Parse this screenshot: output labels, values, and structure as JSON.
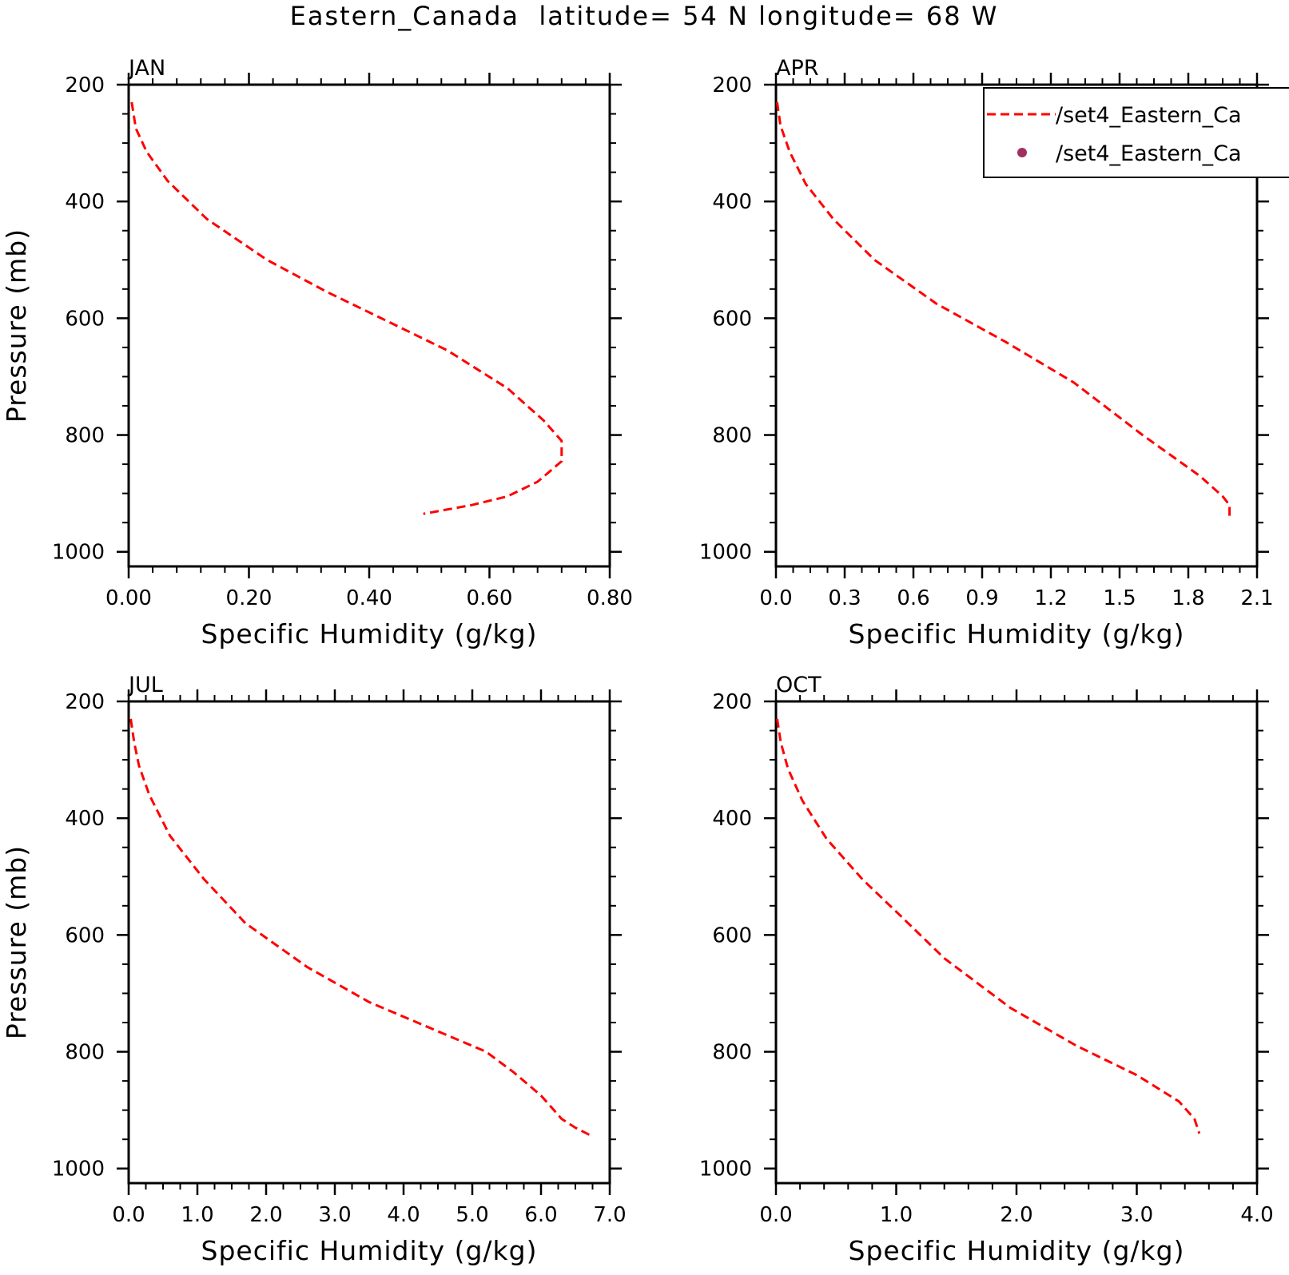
{
  "figure": {
    "title": "Eastern_Canada  latitude= 54 N longitude= 68 W"
  },
  "legend": {
    "items": [
      {
        "label": "/set4_Eastern_Ca",
        "style": "dashed-line",
        "color": "#ff0000"
      },
      {
        "label": "/set4_Eastern_Ca",
        "style": "dot",
        "color": "#a03060"
      }
    ]
  },
  "colors": {
    "series": "#ff0000",
    "axis": "#000000",
    "legend_dot": "#a03060"
  },
  "chart_data": [
    {
      "type": "line",
      "panel_title": "JAN",
      "xlabel": "Specific Humidity (g/kg)",
      "ylabel": "Pressure (mb)",
      "xlim": [
        0,
        0.8
      ],
      "ylim": [
        200,
        1025
      ],
      "y_inverted": true,
      "xticks": [
        0,
        0.2,
        0.4,
        0.6,
        0.8
      ],
      "xtick_labels": [
        "0.00",
        "0.20",
        "0.40",
        "0.60",
        "0.80"
      ],
      "yticks": [
        200,
        400,
        600,
        800,
        1000
      ],
      "ytick_labels": [
        "200",
        "400",
        "600",
        "800",
        "1000"
      ],
      "series": [
        {
          "line_style": "dashed",
          "color": "#ff0000",
          "x": [
            0.005,
            0.012,
            0.03,
            0.065,
            0.13,
            0.23,
            0.33,
            0.43,
            0.53,
            0.63,
            0.69,
            0.72,
            0.72,
            0.68,
            0.63,
            0.57,
            0.49
          ],
          "y": [
            230,
            275,
            315,
            365,
            430,
            500,
            555,
            605,
            655,
            720,
            775,
            810,
            845,
            880,
            905,
            920,
            935
          ]
        }
      ]
    },
    {
      "type": "line",
      "panel_title": "APR",
      "xlabel": "Specific Humidity (g/kg)",
      "ylabel": "",
      "xlim": [
        0,
        2.1
      ],
      "ylim": [
        200,
        1025
      ],
      "y_inverted": true,
      "xticks": [
        0,
        0.3,
        0.6,
        0.9,
        1.2,
        1.5,
        1.8,
        2.1
      ],
      "xtick_labels": [
        "0.0",
        "0.3",
        "0.6",
        "0.9",
        "1.2",
        "1.5",
        "1.8",
        "2.1"
      ],
      "yticks": [
        200,
        400,
        600,
        800,
        1000
      ],
      "ytick_labels": [
        "200",
        "400",
        "600",
        "800",
        "1000"
      ],
      "series": [
        {
          "line_style": "dashed",
          "color": "#ff0000",
          "x": [
            0.005,
            0.02,
            0.06,
            0.13,
            0.25,
            0.43,
            0.7,
            1.0,
            1.3,
            1.6,
            1.85,
            1.95,
            1.98,
            1.98
          ],
          "y": [
            230,
            270,
            315,
            370,
            430,
            500,
            575,
            640,
            710,
            800,
            870,
            905,
            920,
            940
          ]
        }
      ]
    },
    {
      "type": "line",
      "panel_title": "JUL",
      "xlabel": "Specific Humidity (g/kg)",
      "ylabel": "Pressure (mb)",
      "xlim": [
        0,
        7
      ],
      "ylim": [
        200,
        1025
      ],
      "y_inverted": true,
      "xticks": [
        0,
        1,
        2,
        3,
        4,
        5,
        6,
        7
      ],
      "xtick_labels": [
        "0.0",
        "1.0",
        "2.0",
        "3.0",
        "4.0",
        "5.0",
        "6.0",
        "7.0"
      ],
      "yticks": [
        200,
        400,
        600,
        800,
        1000
      ],
      "ytick_labels": [
        "200",
        "400",
        "600",
        "800",
        "1000"
      ],
      "series": [
        {
          "line_style": "dashed",
          "color": "#ff0000",
          "x": [
            0.03,
            0.08,
            0.15,
            0.3,
            0.6,
            1.1,
            1.7,
            2.6,
            3.5,
            4.4,
            5.2,
            5.6,
            6.0,
            6.3,
            6.5,
            6.75
          ],
          "y": [
            230,
            270,
            310,
            360,
            430,
            505,
            580,
            655,
            715,
            760,
            800,
            835,
            875,
            915,
            930,
            945
          ]
        }
      ]
    },
    {
      "type": "line",
      "panel_title": "OCT",
      "xlabel": "Specific Humidity (g/kg)",
      "ylabel": "",
      "xlim": [
        0,
        4
      ],
      "ylim": [
        200,
        1025
      ],
      "y_inverted": true,
      "xticks": [
        0,
        1,
        2,
        3,
        4
      ],
      "xtick_labels": [
        "0.0",
        "1.0",
        "2.0",
        "3.0",
        "4.0"
      ],
      "yticks": [
        200,
        400,
        600,
        800,
        1000
      ],
      "ytick_labels": [
        "200",
        "400",
        "600",
        "800",
        "1000"
      ],
      "series": [
        {
          "line_style": "dashed",
          "color": "#ff0000",
          "x": [
            0.01,
            0.04,
            0.1,
            0.22,
            0.42,
            0.72,
            1.05,
            1.4,
            1.95,
            2.5,
            3.0,
            3.35,
            3.48,
            3.52
          ],
          "y": [
            230,
            270,
            315,
            370,
            435,
            505,
            570,
            640,
            725,
            790,
            840,
            885,
            915,
            940
          ]
        }
      ]
    }
  ]
}
